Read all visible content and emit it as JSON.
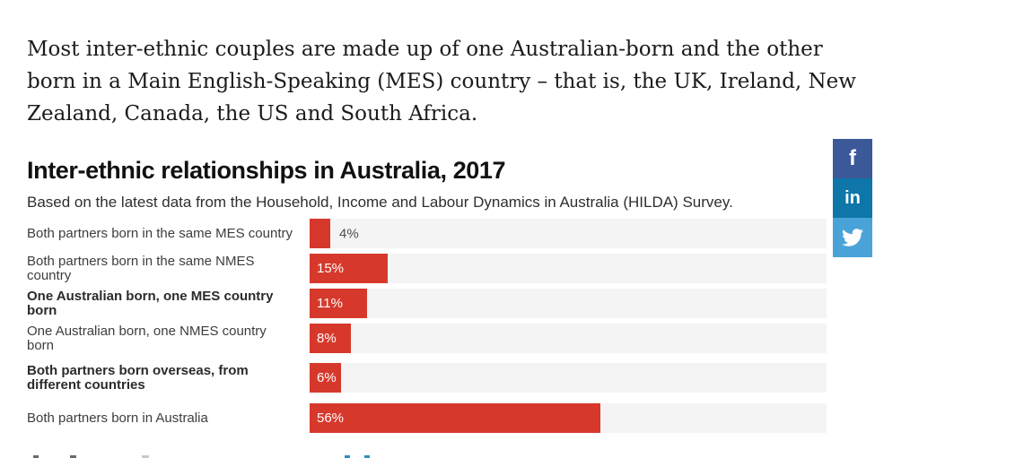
{
  "intro": {
    "text": "Most inter-ethnic couples are made up of one Australian-born and the other born in a Main English-Speaking (MES) country – that is, the UK, Ireland, New Zealand, Canada, the US and South Africa."
  },
  "chart_data": {
    "type": "bar",
    "orientation": "horizontal",
    "title": "Inter-ethnic relationships in Australia, 2017",
    "subtitle": "Based on the latest data from the Household, Income and Labour Dynamics in Australia (HILDA) Survey.",
    "unit": "%",
    "xlim": [
      0,
      100
    ],
    "grid": false,
    "legend": "none",
    "categories": [
      "Both partners born in the same MES country",
      "Both partners born in the same NMES country",
      "One Australian born, one MES country born",
      "One Australian born, one NMES country born",
      "Both partners born overseas, from different countries",
      "Both partners born in Australia"
    ],
    "values": [
      4,
      15,
      11,
      8,
      6,
      56
    ],
    "rows": [
      {
        "label": "Both partners born in the same MES country",
        "value": 4,
        "display": "4%",
        "bold": false,
        "label_inside": false
      },
      {
        "label": "Both partners born in the same NMES country",
        "value": 15,
        "display": "15%",
        "bold": false,
        "label_inside": true
      },
      {
        "label": "One Australian born, one MES country born",
        "value": 11,
        "display": "11%",
        "bold": true,
        "label_inside": true
      },
      {
        "label": "One Australian born, one NMES country born",
        "value": 8,
        "display": "8%",
        "bold": false,
        "label_inside": true
      },
      {
        "label": "Both partners born overseas, from different countries",
        "value": 6,
        "display": "6%",
        "bold": true,
        "label_inside": true
      },
      {
        "label": "Both partners born in Australia",
        "value": 56,
        "display": "56%",
        "bold": false,
        "label_inside": true
      }
    ]
  },
  "share_buttons": [
    {
      "icon": "facebook-icon",
      "label": "f",
      "color": "#3b5998"
    },
    {
      "icon": "linkedin-icon",
      "label": "in",
      "color": "#0e76a8"
    },
    {
      "icon": "twitter-icon",
      "label": "",
      "color": "#4aa3d8"
    }
  ],
  "colors": {
    "bar": "#d6392c",
    "track": "#f4f4f4",
    "value_inside": "#ffffff",
    "value_outside": "#4d4d4d",
    "caption_fragment_dark": "#6b6b6b",
    "caption_fragment_light": "#c9c9c9",
    "caption_fragment_link": "#2f8fc0"
  }
}
